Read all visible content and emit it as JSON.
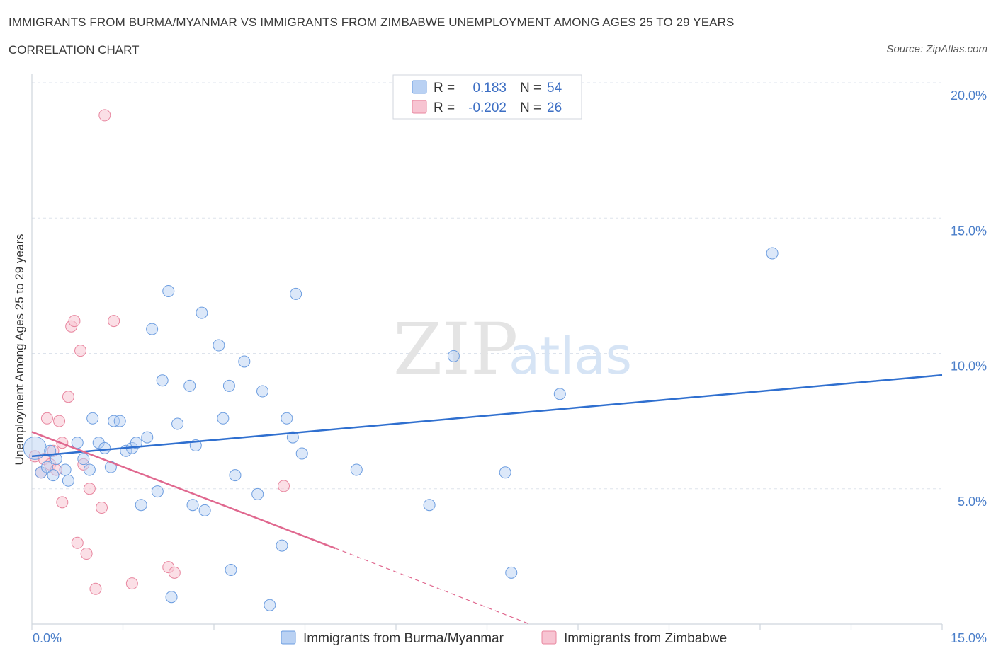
{
  "header": {
    "title": "IMMIGRANTS FROM BURMA/MYANMAR VS IMMIGRANTS FROM ZIMBABWE UNEMPLOYMENT AMONG AGES 25 TO 29 YEARS",
    "subtitle": "CORRELATION CHART",
    "source": "Source: ZipAtlas.com"
  },
  "watermark": {
    "zip": "ZIP",
    "atlas": "atlas"
  },
  "legend": {
    "r_label": "R =",
    "n_label": "N =",
    "rows": [
      {
        "r": "0.183",
        "n": "54"
      },
      {
        "r": "-0.202",
        "n": "26"
      }
    ]
  },
  "colors": {
    "blue_fill": "#b9d1f3",
    "blue_stroke": "#6c9de0",
    "blue_line": "#2f6fcf",
    "pink_fill": "#f7c4d2",
    "pink_stroke": "#e8869f",
    "pink_line": "#e0688f",
    "grid": "#dde3ec",
    "axis_text": "#4a7ec9"
  },
  "chart_data": {
    "type": "scatter",
    "title": "IMMIGRANTS FROM BURMA/MYANMAR VS IMMIGRANTS FROM ZIMBABWE UNEMPLOYMENT AMONG AGES 25 TO 29 YEARS",
    "xlabel": "",
    "ylabel": "Unemployment Among Ages 25 to 29 years",
    "xlim": [
      0,
      15
    ],
    "ylim": [
      0,
      20
    ],
    "x_tick_labels": [
      "0.0%",
      "15.0%"
    ],
    "y_ticks": [
      5,
      10,
      15,
      20
    ],
    "y_tick_labels": [
      "5.0%",
      "10.0%",
      "15.0%",
      "20.0%"
    ],
    "series": [
      {
        "name": "Immigrants from Burma/Myanmar",
        "r": 0.183,
        "n": 54,
        "trend": {
          "x0": 0.0,
          "y0": 6.2,
          "x1": 15.0,
          "y1": 9.2
        },
        "points": [
          [
            0.05,
            6.5
          ],
          [
            0.15,
            5.6
          ],
          [
            0.25,
            5.8
          ],
          [
            0.3,
            6.4
          ],
          [
            0.35,
            5.5
          ],
          [
            0.4,
            6.1
          ],
          [
            0.55,
            5.7
          ],
          [
            0.6,
            5.3
          ],
          [
            0.75,
            6.7
          ],
          [
            0.85,
            6.1
          ],
          [
            0.95,
            5.7
          ],
          [
            1.0,
            7.6
          ],
          [
            1.1,
            6.7
          ],
          [
            1.2,
            6.5
          ],
          [
            1.3,
            5.8
          ],
          [
            1.35,
            7.5
          ],
          [
            1.45,
            7.5
          ],
          [
            1.55,
            6.4
          ],
          [
            1.65,
            6.5
          ],
          [
            1.72,
            6.7
          ],
          [
            1.8,
            4.4
          ],
          [
            1.9,
            6.9
          ],
          [
            1.98,
            10.9
          ],
          [
            2.07,
            4.9
          ],
          [
            2.15,
            9.0
          ],
          [
            2.25,
            12.3
          ],
          [
            2.3,
            1.0
          ],
          [
            2.4,
            7.4
          ],
          [
            2.6,
            8.8
          ],
          [
            2.65,
            4.4
          ],
          [
            2.7,
            6.6
          ],
          [
            2.85,
            4.2
          ],
          [
            2.8,
            11.5
          ],
          [
            3.08,
            10.3
          ],
          [
            3.15,
            7.6
          ],
          [
            3.25,
            8.8
          ],
          [
            3.28,
            2.0
          ],
          [
            3.35,
            5.5
          ],
          [
            3.5,
            9.7
          ],
          [
            3.72,
            4.8
          ],
          [
            3.8,
            8.6
          ],
          [
            3.92,
            0.7
          ],
          [
            4.12,
            2.9
          ],
          [
            4.2,
            7.6
          ],
          [
            4.3,
            6.9
          ],
          [
            4.35,
            12.2
          ],
          [
            4.45,
            6.3
          ],
          [
            5.35,
            5.7
          ],
          [
            6.55,
            4.4
          ],
          [
            6.95,
            9.9
          ],
          [
            7.8,
            5.6
          ],
          [
            7.9,
            1.9
          ],
          [
            8.7,
            8.5
          ],
          [
            12.2,
            13.7
          ]
        ]
      },
      {
        "name": "Immigrants from Zimbabwe",
        "r": -0.202,
        "n": 26,
        "trend": {
          "x0": 0.0,
          "y0": 7.1,
          "x1": 5.0,
          "y1": 2.8,
          "dashed_to_x": 8.2,
          "dashed_to_y": 0.0
        },
        "points": [
          [
            0.05,
            6.2
          ],
          [
            0.15,
            5.6
          ],
          [
            0.2,
            6.1
          ],
          [
            0.25,
            7.6
          ],
          [
            0.3,
            5.9
          ],
          [
            0.35,
            6.4
          ],
          [
            0.4,
            5.7
          ],
          [
            0.45,
            7.5
          ],
          [
            0.5,
            6.7
          ],
          [
            0.5,
            4.5
          ],
          [
            0.6,
            8.4
          ],
          [
            0.65,
            11.0
          ],
          [
            0.7,
            11.2
          ],
          [
            0.75,
            3.0
          ],
          [
            0.8,
            10.1
          ],
          [
            0.85,
            5.9
          ],
          [
            0.9,
            2.6
          ],
          [
            0.95,
            5.0
          ],
          [
            1.05,
            1.3
          ],
          [
            1.15,
            4.3
          ],
          [
            1.2,
            18.8
          ],
          [
            1.35,
            11.2
          ],
          [
            1.65,
            1.5
          ],
          [
            2.25,
            2.1
          ],
          [
            2.35,
            1.9
          ],
          [
            4.15,
            5.1
          ]
        ]
      }
    ]
  }
}
